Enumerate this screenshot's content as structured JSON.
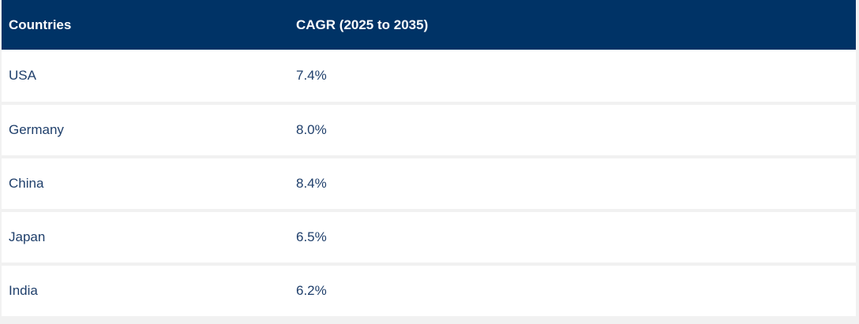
{
  "table": {
    "headers": {
      "country": "Countries",
      "cagr": "CAGR (2025 to 2035)"
    },
    "rows": [
      {
        "country": "USA",
        "cagr": "7.4%"
      },
      {
        "country": "Germany",
        "cagr": "8.0%"
      },
      {
        "country": "China",
        "cagr": "8.4%"
      },
      {
        "country": "Japan",
        "cagr": "6.5%"
      },
      {
        "country": "India",
        "cagr": "6.2%"
      }
    ]
  },
  "colors": {
    "header_bg": "#003366",
    "header_text": "#ffffff",
    "body_text": "#1f3f6b",
    "row_separator": "#f1f1f1"
  }
}
